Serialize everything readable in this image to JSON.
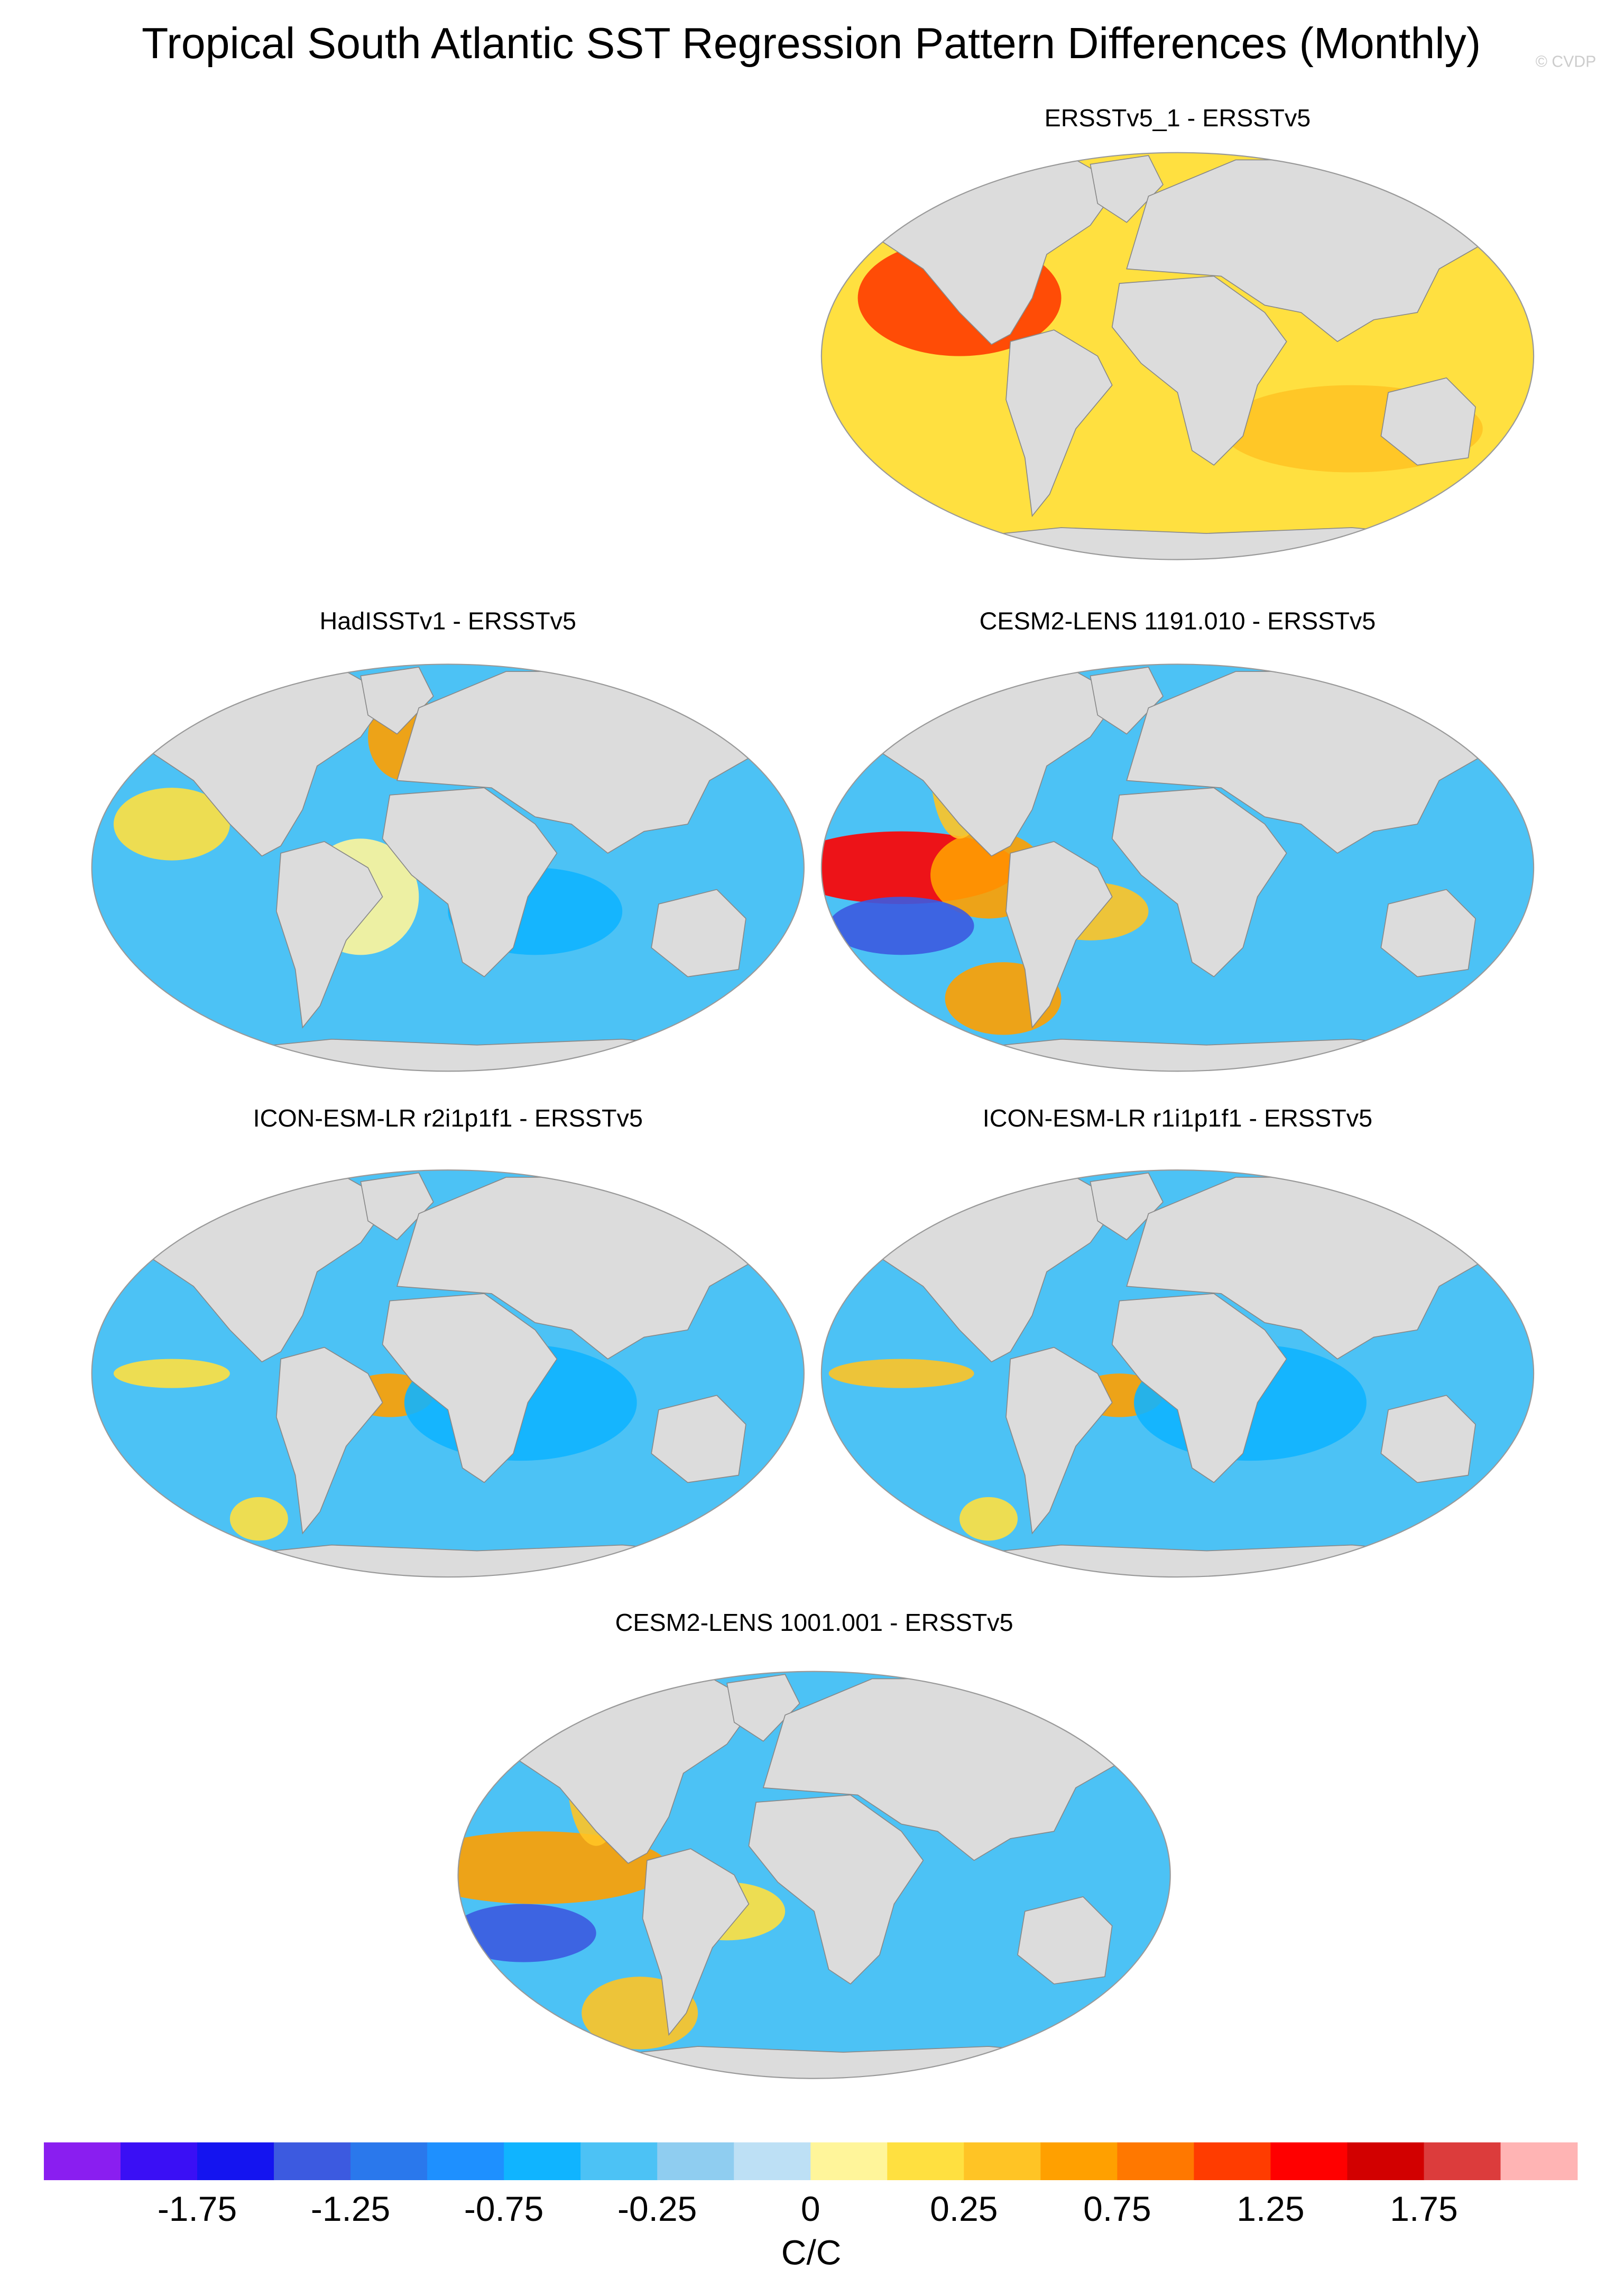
{
  "title": "Tropical South Atlantic SST Regression Pattern Differences (Monthly)",
  "watermark": "© CVDP",
  "panels": [
    {
      "title": "ERSSTv5_1 - ERSSTv5"
    },
    {
      "title": "HadISSTv1 - ERSSTv5"
    },
    {
      "title": "CESM2-LENS 1191.010 - ERSSTv5"
    },
    {
      "title": "ICON-ESM-LR r2i1p1f1 - ERSSTv5"
    },
    {
      "title": "ICON-ESM-LR r1i1p1f1 - ERSSTv5"
    },
    {
      "title": "CESM2-LENS 1001.001 - ERSSTv5"
    }
  ],
  "colorbar": {
    "colors": [
      "#8a1ef0",
      "#3a0ff5",
      "#1414f0",
      "#3c5ae0",
      "#2a78ec",
      "#1e90ff",
      "#10b4ff",
      "#4cc2f5",
      "#8fcdf0",
      "#bde0f5",
      "#fff59a",
      "#ffe040",
      "#ffc425",
      "#ffa000",
      "#ff7800",
      "#ff3c00",
      "#ff0000",
      "#d20000",
      "#dc3c3c",
      "#ffb4b4"
    ],
    "ticks": [
      -1.75,
      -1.25,
      -0.75,
      -0.25,
      0,
      0.25,
      0.75,
      1.25,
      1.75
    ],
    "unit": "C/C"
  }
}
